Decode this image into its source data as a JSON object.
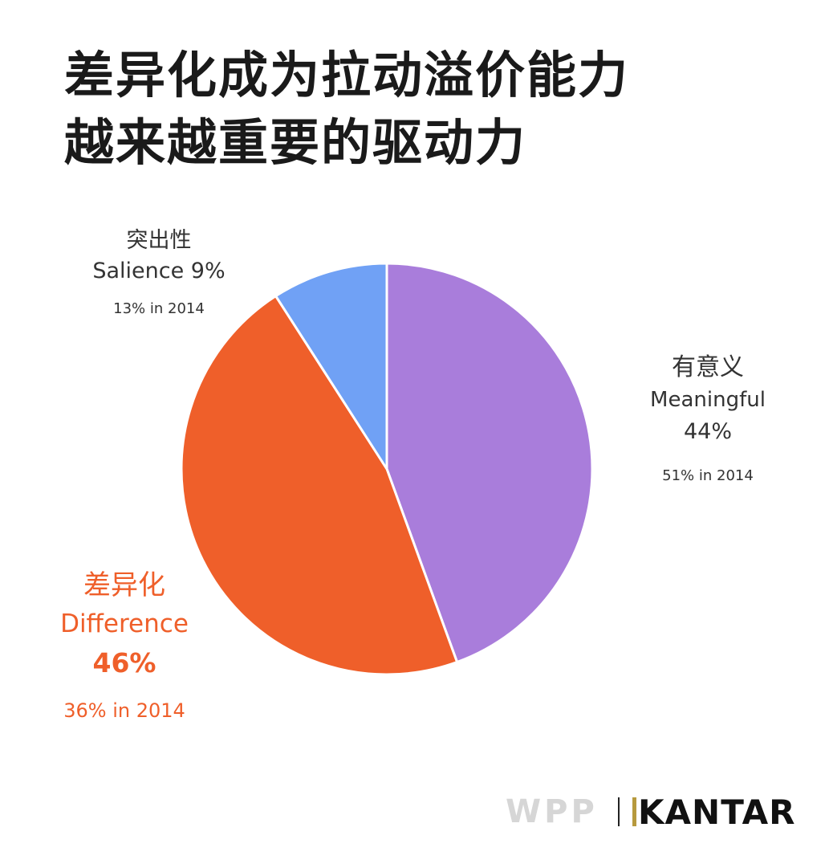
{
  "title": {
    "line1": "差异化成为拉动溢价能力",
    "line2": "越来越重要的驱动力"
  },
  "chart_data": {
    "type": "pie",
    "slices": [
      {
        "key": "meaningful",
        "label_cn": "有意义",
        "label_en": "Meaningful",
        "value": 44,
        "value_text": "44%",
        "previous_text": "51% in 2014",
        "color": "#a97ddb"
      },
      {
        "key": "difference",
        "label_cn": "差异化",
        "label_en": "Difference",
        "value": 46,
        "value_text": "46%",
        "previous_text": "36% in 2014",
        "color": "#ef5f2a"
      },
      {
        "key": "salience",
        "label_cn": "突出性",
        "label_en": "Salience",
        "value": 9,
        "value_text": "9%",
        "previous_text": "13% in 2014",
        "color": "#70a1f5"
      }
    ],
    "start_angle": "12 o'clock",
    "direction": "clockwise"
  },
  "labels": {
    "salience": {
      "cn": "突出性",
      "en_pct": "Salience 9%",
      "prev": "13% in 2014"
    },
    "meaningful": {
      "cn": "有意义",
      "en": "Meaningful",
      "pct": "44%",
      "prev": "51% in 2014"
    },
    "difference": {
      "cn": "差异化",
      "en": "Difference",
      "pct": "46%",
      "prev": "36% in 2014"
    }
  },
  "logos": {
    "wpp": "WPP",
    "kantar": "KANTAR"
  },
  "colors": {
    "meaningful": "#a97ddb",
    "difference": "#ef5f2a",
    "salience": "#70a1f5",
    "text_dark": "#1a1a1a",
    "text_label": "#333333"
  }
}
